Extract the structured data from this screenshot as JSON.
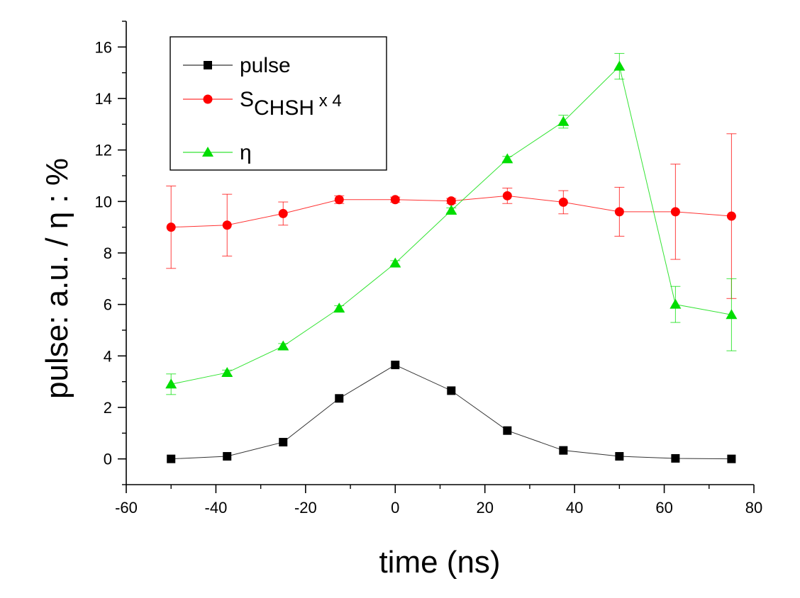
{
  "chart_data": {
    "type": "line",
    "title": "",
    "xlabel": "time (ns)",
    "ylabel": "pulse: a.u. / η : %",
    "xlim": [
      -60,
      80
    ],
    "ylim": [
      -1,
      17
    ],
    "xticks": [
      -60,
      -40,
      -20,
      0,
      20,
      40,
      60,
      80
    ],
    "yticks": [
      0,
      2,
      4,
      6,
      8,
      10,
      12,
      14,
      16
    ],
    "legend_position": "top-left",
    "grid": false,
    "series": [
      {
        "name": "pulse",
        "legend_main": "pulse",
        "legend_sub": "",
        "legend_suffix": "",
        "color": "#000000",
        "marker": "square",
        "x": [
          -50,
          -37.5,
          -25,
          -12.5,
          0,
          12.5,
          25,
          37.5,
          50,
          62.5,
          75
        ],
        "y": [
          0.0,
          0.1,
          0.65,
          2.35,
          3.65,
          2.65,
          1.1,
          0.33,
          0.1,
          0.02,
          0.0
        ],
        "err": null
      },
      {
        "name": "SCHSH x 4",
        "legend_main": "S",
        "legend_sub": "CHSH",
        "legend_suffix": " x 4",
        "color": "#ff0000",
        "marker": "circle",
        "x": [
          -50,
          -37.5,
          -25,
          -12.5,
          0,
          12.5,
          25,
          37.5,
          50,
          62.5,
          75
        ],
        "y": [
          9.0,
          9.08,
          9.53,
          10.07,
          10.07,
          10.02,
          10.22,
          9.97,
          9.6,
          9.6,
          9.43
        ],
        "err": [
          1.6,
          1.2,
          0.45,
          0.15,
          0.1,
          0.1,
          0.3,
          0.45,
          0.95,
          1.85,
          3.2
        ]
      },
      {
        "name": "η",
        "legend_main": "η",
        "legend_sub": "",
        "legend_suffix": "",
        "color": "#00dd00",
        "marker": "triangle",
        "x": [
          -50,
          -37.5,
          -25,
          -12.5,
          0,
          12.5,
          25,
          37.5,
          50,
          62.5,
          75
        ],
        "y": [
          2.9,
          3.35,
          4.38,
          5.85,
          7.6,
          9.65,
          11.65,
          13.1,
          15.25,
          6.0,
          5.6
        ],
        "err": [
          0.4,
          0.1,
          0.1,
          0.1,
          0.1,
          0.1,
          0.1,
          0.25,
          0.5,
          0.7,
          1.4
        ]
      }
    ]
  }
}
